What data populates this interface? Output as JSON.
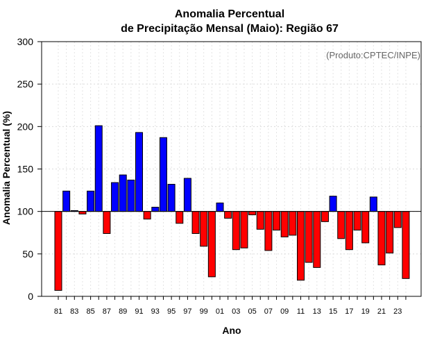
{
  "chart_data": {
    "type": "bar",
    "title": [
      "Anomalia Percentual",
      "de Precipitação Mensal (Maio): Região 67"
    ],
    "credit": "(Produto:CPTEC/INPE)",
    "xlabel": "Ano",
    "ylabel": "Anomalia Percentual (%)",
    "ylim": [
      0,
      300
    ],
    "yticks": [
      "0",
      "50",
      "100",
      "150",
      "200",
      "250",
      "300"
    ],
    "baseline": 100,
    "grid": true,
    "categories": [
      "81",
      "82",
      "83",
      "84",
      "85",
      "86",
      "87",
      "88",
      "89",
      "90",
      "91",
      "92",
      "93",
      "94",
      "95",
      "96",
      "97",
      "98",
      "99",
      "00",
      "01",
      "02",
      "03",
      "04",
      "05",
      "06",
      "07",
      "08",
      "09",
      "10",
      "11",
      "12",
      "13",
      "14",
      "15",
      "16",
      "17",
      "18",
      "19",
      "20",
      "21",
      "22",
      "23",
      "24"
    ],
    "xtick_labels": [
      "81",
      "83",
      "85",
      "87",
      "89",
      "91",
      "93",
      "95",
      "97",
      "99",
      "01",
      "03",
      "05",
      "07",
      "09",
      "11",
      "13",
      "15",
      "17",
      "19",
      "21",
      "23"
    ],
    "values": [
      7,
      124,
      101,
      97,
      124,
      201,
      74,
      134,
      143,
      137,
      193,
      91,
      105,
      187,
      132,
      86,
      139,
      74,
      59,
      23,
      110,
      92,
      55,
      57,
      96,
      79,
      54,
      78,
      70,
      72,
      19,
      40,
      34,
      88,
      118,
      68,
      55,
      78,
      63,
      117,
      37,
      51,
      81,
      21
    ],
    "colors": {
      "above": "#0000ff",
      "below": "#ff0000"
    }
  }
}
